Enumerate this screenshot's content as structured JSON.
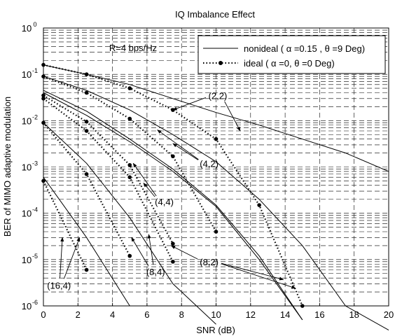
{
  "chart_data": {
    "type": "line",
    "title": "IQ Imbalance Effect",
    "xlabel": "SNR (dB)",
    "ylabel": "BER of MIMO adaptive modulation",
    "xlim": [
      0,
      20
    ],
    "ylim": [
      1e-06,
      1
    ],
    "yscale": "log",
    "grid": true,
    "x_ticks": [
      "0",
      "2",
      "4",
      "6",
      "8",
      "10",
      "12",
      "14",
      "16",
      "18",
      "20"
    ],
    "y_ticks": [
      {
        "base": "10",
        "exp": "0"
      },
      {
        "base": "10",
        "exp": "-1"
      },
      {
        "base": "10",
        "exp": "-2"
      },
      {
        "base": "10",
        "exp": "-3"
      },
      {
        "base": "10",
        "exp": "-4"
      },
      {
        "base": "10",
        "exp": "-5"
      },
      {
        "base": "10",
        "exp": "-6"
      }
    ],
    "legend": {
      "position": "top-right",
      "entries": [
        {
          "label": "nonideal ( α =0.15 , θ =9 Deg)",
          "style": "solid"
        },
        {
          "label": "ideal ( α =0, θ =0 Deg)",
          "style": "dotted-marker"
        }
      ]
    },
    "rate_label": "R=4 bps/Hz",
    "series": [
      {
        "group": "(2,2)",
        "style": "solid",
        "x": [
          0,
          2.5,
          5,
          7.5,
          10,
          12.5,
          15,
          17.5,
          20
        ],
        "y": [
          0.16,
          0.1,
          0.06,
          0.03,
          0.015,
          0.008,
          0.004,
          0.002,
          0.0008
        ]
      },
      {
        "group": "(2,2)",
        "style": "dotted",
        "x": [
          0,
          2.5,
          5,
          7.5,
          10,
          12.5,
          15
        ],
        "y": [
          0.16,
          0.1,
          0.05,
          0.017,
          0.004,
          0.00015,
          1e-06
        ]
      },
      {
        "group": "(4,2)",
        "style": "solid",
        "x": [
          0,
          2.5,
          5,
          7.5,
          10,
          12.5,
          15,
          17.5,
          20
        ],
        "y": [
          0.09,
          0.045,
          0.017,
          0.005,
          0.0013,
          0.0002,
          2e-05,
          1e-06,
          3e-07
        ]
      },
      {
        "group": "(4,2)",
        "style": "dotted",
        "x": [
          0,
          2.5,
          5,
          7.5,
          10
        ],
        "y": [
          0.09,
          0.04,
          0.011,
          0.0017,
          4e-05
        ]
      },
      {
        "group": "(4,4)",
        "style": "solid",
        "x": [
          0,
          2.5,
          5,
          7.5,
          10,
          12.5,
          15
        ],
        "y": [
          0.04,
          0.013,
          0.0035,
          0.0008,
          0.00014,
          1e-05,
          5e-07
        ]
      },
      {
        "group": "(4,4)",
        "style": "dotted",
        "x": [
          0,
          2.5,
          5,
          7.5
        ],
        "y": [
          0.035,
          0.0095,
          0.0011,
          2.2e-05
        ]
      },
      {
        "group": "(8,2)",
        "style": "solid",
        "x": [
          0,
          2.5,
          5,
          7.5,
          10,
          12.5,
          15
        ],
        "y": [
          0.045,
          0.016,
          0.004,
          0.0009,
          0.00015,
          1.2e-05,
          5e-07
        ]
      },
      {
        "group": "(8,2)",
        "style": "dotted",
        "x": [
          0,
          2.5,
          5,
          7.5
        ],
        "y": [
          0.03,
          0.006,
          0.0006,
          9e-06
        ]
      },
      {
        "group": "(8,4)",
        "style": "solid",
        "x": [
          0,
          2.5,
          5,
          7.5,
          10
        ],
        "y": [
          0.009,
          0.0012,
          8e-05,
          3e-06,
          4e-07
        ]
      },
      {
        "group": "(8,4)",
        "style": "dotted",
        "x": [
          0,
          2.5,
          5
        ],
        "y": [
          0.009,
          0.0007,
          1.2e-05
        ]
      },
      {
        "group": "(16,4)",
        "style": "solid",
        "x": [
          0,
          2.5,
          5
        ],
        "y": [
          0.0006,
          3e-05,
          1e-06
        ]
      },
      {
        "group": "(16,4)",
        "style": "dotted",
        "x": [
          0,
          2.5
        ],
        "y": [
          0.0005,
          6e-06
        ]
      }
    ],
    "annotations": [
      {
        "text": "(2,2)",
        "x": 10.1,
        "y": 0.035,
        "arrows": [
          [
            7.5,
            0.017
          ],
          [
            11.4,
            0.006
          ]
        ]
      },
      {
        "text": "(4,2)",
        "x": 9.6,
        "y": 0.0012,
        "arrows": [
          [
            6.6,
            0.0063
          ],
          [
            7.5,
            0.0032
          ]
        ]
      },
      {
        "text": "(4,4)",
        "x": 7.0,
        "y": 0.00018,
        "arrows": [
          [
            5.2,
            0.0012
          ],
          [
            5.8,
            0.00045
          ]
        ]
      },
      {
        "text": "(8,4)",
        "x": 6.5,
        "y": 5.5e-06,
        "arrows": [
          [
            5.1,
            3e-05
          ],
          [
            6.1,
            3.5e-05
          ]
        ]
      },
      {
        "text": "(8,2)",
        "x": 9.6,
        "y": 9e-06,
        "arrows": [
          [
            7.4,
            2e-05
          ],
          [
            13.9,
            3.7e-06
          ],
          [
            14.6,
            2.4e-06
          ]
        ]
      },
      {
        "text": "(16,4)",
        "x": 0.9,
        "y": 2.8e-06,
        "arrows": [
          [
            1.1,
            3e-05
          ],
          [
            2.1,
            3e-05
          ]
        ]
      }
    ]
  }
}
